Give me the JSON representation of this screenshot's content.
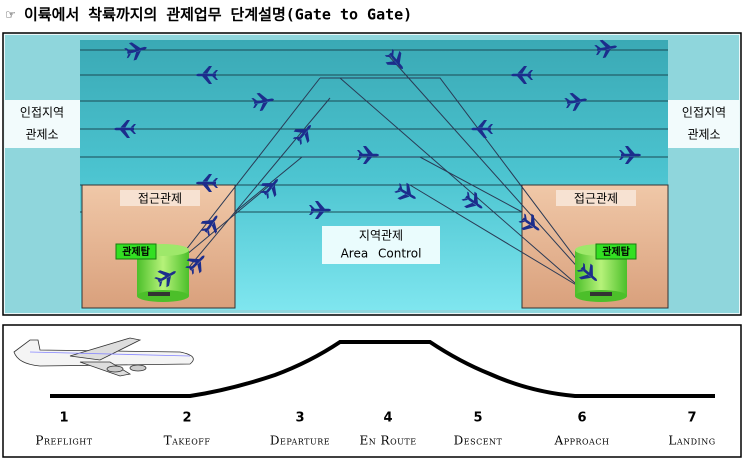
{
  "header": {
    "title": "☞ 이륙에서 착륙까지의 관제업무 단계설명(Gate to Gate)"
  },
  "regions": {
    "adjacent_left": [
      "인접지역",
      "관제소"
    ],
    "adjacent_right": [
      "인접지역",
      "관제소"
    ],
    "approach_left": "접근관제",
    "approach_right": "접근관제",
    "tower_left": "관제탑",
    "tower_right": "관제탑",
    "area": [
      "지역관제",
      "Area Control"
    ]
  },
  "phases": [
    {
      "number": "1",
      "name": "Preflight"
    },
    {
      "number": "2",
      "name": "Takeoff"
    },
    {
      "number": "3",
      "name": "Departure"
    },
    {
      "number": "4",
      "name": "En Route"
    },
    {
      "number": "5",
      "name": "Descent"
    },
    {
      "number": "6",
      "name": "Approach"
    },
    {
      "number": "7",
      "name": "Landing"
    }
  ]
}
